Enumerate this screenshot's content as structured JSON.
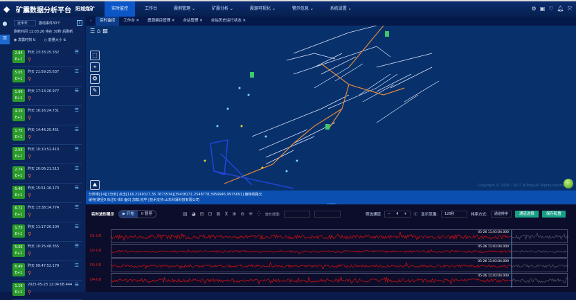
{
  "header": {
    "title": "矿震数据分析平台",
    "mine": "阳城煤矿",
    "nav": [
      "实时监控",
      "工作台",
      "震例管理 ⌄",
      "矿震分析 ⌄",
      "震源可视化 ⌄",
      "警示信息 ⌄",
      "系统设置 ⌄"
    ],
    "active_nav": 0
  },
  "left_panel": {
    "period": "近半年",
    "event_count": "震动事件30个",
    "refresh": "刷新时间 11:03:26 将在 30秒 后刷新",
    "sort_time": "发震时刻 ⇅",
    "sort_energy": "能量大小 ⇅",
    "events": [
      {
        "mag": "2.84",
        "exp": "E+1",
        "time": "昨天 23:33:25.332"
      },
      {
        "mag": "5.05",
        "exp": "E+1",
        "time": "昨天 21:59:25.637"
      },
      {
        "mag": "1.69",
        "exp": "E+1",
        "time": "昨天 17:13:26.977"
      },
      {
        "mag": "4.29",
        "exp": "E+1",
        "time": "昨天 16:16:24.731"
      },
      {
        "mag": "1.75",
        "exp": "E+1",
        "time": "昨天 14:46:25.451"
      },
      {
        "mag": "2.55",
        "exp": "E+1",
        "time": "昨天 10:10:52.410"
      },
      {
        "mag": "2.74",
        "exp": "E+1",
        "time": "昨天 20:06:21.513"
      },
      {
        "mag": "5.46",
        "exp": "E+1",
        "time": "昨天 15:51:16.173"
      },
      {
        "mag": "6.72",
        "exp": "E+1",
        "time": "昨天 13:38:14.774"
      },
      {
        "mag": "1.75",
        "exp": "E+1",
        "time": "昨天 11:17:20.104"
      },
      {
        "mag": "5.65",
        "exp": "E+1",
        "time": "昨天 10:25:48.355"
      },
      {
        "mag": "6.49",
        "exp": "E+1",
        "time": "昨天 09:47:52.179"
      },
      {
        "mag": "1.19",
        "exp": "E+1",
        "time": "2025-05-23 12:04:08.444"
      }
    ]
  },
  "tabs": [
    "实时监控",
    "工作台 ✕",
    "震源编目管理 ✕",
    "台站管理 ✕",
    "台站历史运行状态 ✕"
  ],
  "map": {
    "copyright": "Copyright © 2018 - 2027 AiTopo.All Rights reserved",
    "status_line1": "分辨率[14][1分米] 点击[116.2169327,35.7673534][39438231.2548778,3959945.9975691] 编辑线路元",
    "status_line2": "缓存[路径0 标注0 线0 面0] 加载:完毕 [技术支持:山东科晟科技有限公司"
  },
  "waveform": {
    "title": "实时波形展示",
    "start": "▶ 开始",
    "pause": "II 暂停",
    "range_label": "波形范围:",
    "channel_filter": "筛选通道",
    "channel_count": "4",
    "display_range_label": "显示范围:",
    "display_range": "120秒",
    "sort_label": "排序方式:",
    "sort_value": "通道排序",
    "select_channels": "通道选择",
    "save_config": "保存配置",
    "channels": [
      {
        "name": "D1-UD",
        "time": "05-26 11:03:04.000"
      },
      {
        "name": "D2-UD",
        "time": "05-26 11:03:04.000"
      },
      {
        "name": "D3-UD",
        "time": "05-26 11:03:04.000"
      },
      {
        "name": "D4-UD",
        "time": "05-26 11:03:04.000"
      }
    ]
  },
  "colors": {
    "accent": "#0d56c8",
    "wave": "#e01010",
    "button": "#17a086",
    "magnitude": "#2a9a2a"
  }
}
